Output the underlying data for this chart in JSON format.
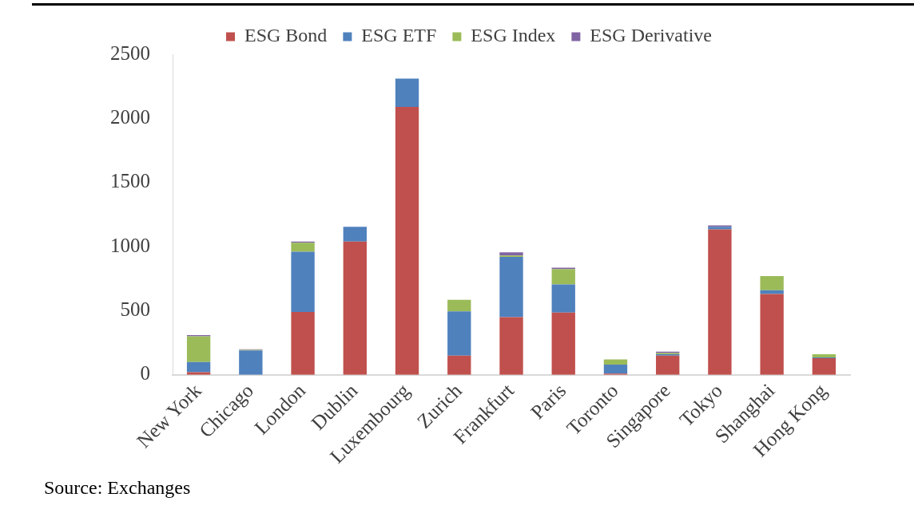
{
  "chart_data": {
    "type": "bar",
    "stacked": true,
    "legend": "top",
    "grid": false,
    "categories": [
      "New York",
      "Chicago",
      "London",
      "Dublin",
      "Luxembourg",
      "Zurich",
      "Frankfurt",
      "Paris",
      "Toronto",
      "Singapore",
      "Tokyo",
      "Shanghai",
      "Hong Kong"
    ],
    "series": [
      {
        "name": "ESG Bond",
        "color": "#c0504d",
        "values": [
          20,
          0,
          490,
          1040,
          2090,
          150,
          450,
          485,
          10,
          150,
          1135,
          630,
          130
        ]
      },
      {
        "name": "ESG ETF",
        "color": "#4f81bd",
        "values": [
          80,
          190,
          470,
          115,
          220,
          345,
          470,
          220,
          70,
          10,
          20,
          30,
          5
        ]
      },
      {
        "name": "ESG Index",
        "color": "#9bbb59",
        "values": [
          200,
          5,
          70,
          0,
          0,
          90,
          10,
          120,
          40,
          10,
          0,
          110,
          25
        ]
      },
      {
        "name": "ESG Derivative",
        "color": "#8064a2",
        "values": [
          10,
          5,
          10,
          0,
          0,
          0,
          25,
          10,
          0,
          10,
          10,
          0,
          0
        ]
      }
    ],
    "ylim": [
      0,
      2500
    ],
    "yticks": [
      0,
      500,
      1000,
      1500,
      2000,
      2500
    ],
    "annotations": [
      "Source: Exchanges"
    ]
  }
}
